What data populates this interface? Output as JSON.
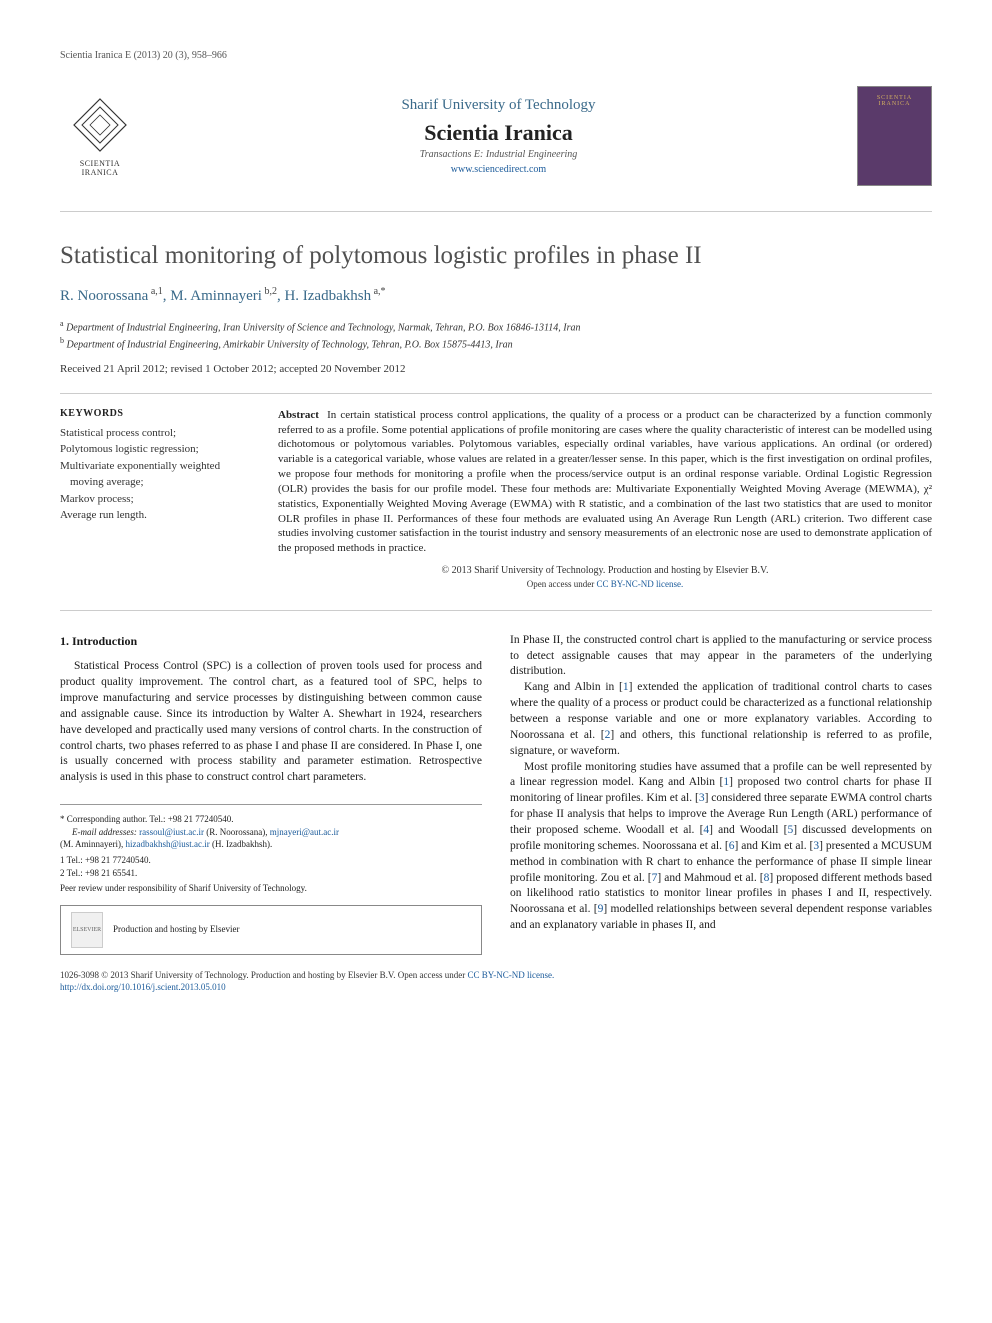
{
  "header_bar": "Scientia Iranica E (2013) 20 (3), 958–966",
  "logo_left_label": "SCIENTIA\nIRANICA",
  "journal": {
    "university": "Sharif University of Technology",
    "name": "Scientia Iranica",
    "transactions": "Transactions E: Industrial Engineering",
    "url": "www.sciencedirect.com"
  },
  "cover_label": "SCIENTIA IRANICA",
  "title": "Statistical monitoring of polytomous logistic profiles in phase II",
  "authors_html": "R. Noorossana<sup> a,1</sup>, M. Aminnayeri<sup> b,2</sup>, H. Izadbakhsh<sup> a,*</sup>",
  "affiliations": [
    {
      "sup": "a",
      "text": "Department of Industrial Engineering, Iran University of Science and Technology, Narmak, Tehran, P.O. Box 16846-13114, Iran"
    },
    {
      "sup": "b",
      "text": "Department of Industrial Engineering, Amirkabir University of Technology, Tehran, P.O. Box 15875-4413, Iran"
    }
  ],
  "dates": "Received 21 April 2012; revised 1 October 2012; accepted 20 November 2012",
  "keywords_heading": "KEYWORDS",
  "keywords": [
    "Statistical process control;",
    "Polytomous logistic regression;",
    "Multivariate exponentially weighted moving average;",
    "Markov process;",
    "Average run length."
  ],
  "abstract_label": "Abstract",
  "abstract_body": "In certain statistical process control applications, the quality of a process or a product can be characterized by a function commonly referred to as a profile. Some potential applications of profile monitoring are cases where the quality characteristic of interest can be modelled using dichotomous or polytomous variables. Polytomous variables, especially ordinal variables, have various applications. An ordinal (or ordered) variable is a categorical variable, whose values are related in a greater/lesser sense. In this paper, which is the first investigation on ordinal profiles, we propose four methods for monitoring a profile when the process/service output is an ordinal response variable. Ordinal Logistic Regression (OLR) provides the basis for our profile model. These four methods are: Multivariate Exponentially Weighted Moving Average (MEWMA), χ² statistics, Exponentially Weighted Moving Average (EWMA) with R statistic, and a combination of the last two statistics that are used to monitor OLR profiles in phase II. Performances of these four methods are evaluated using An Average Run Length (ARL) criterion. Two different case studies involving customer satisfaction in the tourist industry and sensory measurements of an electronic nose are used to demonstrate application of the proposed methods in practice.",
  "copyright": "© 2013 Sharif University of Technology. Production and hosting by Elsevier B.V.",
  "license_prefix": "Open access under ",
  "license_link": "CC BY-NC-ND license.",
  "section1_heading": "1. Introduction",
  "col_left_p1": "Statistical Process Control (SPC) is a collection of proven tools used for process and product quality improvement. The control chart, as a featured tool of SPC, helps to improve manufacturing and service processes by distinguishing between common cause and assignable cause. Since its introduction by Walter A. Shewhart in 1924, researchers have developed and practically used many versions of control charts. In the construction of control charts, two phases referred to as phase I and phase II are considered. In Phase I, one is usually concerned with process stability and parameter estimation. Retrospective analysis is used in this phase to construct control chart parameters.",
  "col_right_p1": "In Phase II, the constructed control chart is applied to the manufacturing or service process to detect assignable causes that may appear in the parameters of the underlying distribution.",
  "col_right_p2_a": "Kang and Albin in [",
  "col_right_p2_b": "] extended the application of traditional control charts to cases where the quality of a process or product could be characterized as a functional relationship between a response variable and one or more explanatory variables. According to Noorossana et al. [",
  "col_right_p2_c": "] and others, this functional relationship is referred to as profile, signature, or waveform.",
  "col_right_p3_a": "Most profile monitoring studies have assumed that a profile can be well represented by a linear regression model. Kang and Albin [",
  "col_right_p3_b": "] proposed two control charts for phase II monitoring of linear profiles. Kim et al. [",
  "col_right_p3_c": "] considered three separate EWMA control charts for phase II analysis that helps to improve the Average Run Length (ARL) performance of their proposed scheme. Woodall et al. [",
  "col_right_p3_d": "] and Woodall [",
  "col_right_p3_e": "] discussed developments on profile monitoring schemes. Noorossana et al. [",
  "col_right_p3_f": "] and Kim et al. [",
  "col_right_p3_g": "] presented a MCUSUM method in combination with R chart to enhance the performance of phase II simple linear profile monitoring. Zou et al. [",
  "col_right_p3_h": "] and Mahmoud et al. [",
  "col_right_p3_i": "] proposed different methods based on likelihood ratio statistics to monitor linear profiles in phases I and II, respectively. Noorossana et al. [",
  "col_right_p3_j": "] modelled relationships between several dependent response variables and an explanatory variable in phases II, and",
  "refs": {
    "r1": "1",
    "r2": "2",
    "r3": "3",
    "r4": "4",
    "r5": "5",
    "r6": "6",
    "r7": "7",
    "r8": "8",
    "r9": "9"
  },
  "footnotes": {
    "corr_label": "* Corresponding author. Tel.: +98 21 77240540.",
    "email_label": "E-mail addresses:",
    "email1": "rassoul@iust.ac.ir",
    "name1": "(R. Noorossana),",
    "email2": "mjnayeri@aut.ac.ir",
    "name2": "(M. Aminnayeri),",
    "email3": "hizadbakhsh@iust.ac.ir",
    "name3": "(H. Izadbakhsh).",
    "tel1": "1  Tel.: +98 21 77240540.",
    "tel2": "2  Tel.: +98 21 65541.",
    "peer": "Peer review under responsibility of Sharif University of Technology."
  },
  "elsevier_text": "Production and hosting by Elsevier",
  "bottom": {
    "line1_a": "1026-3098 © 2013 Sharif University of Technology. Production and hosting by Elsevier B.V. ",
    "line1_b": "Open access under ",
    "line1_link": "CC BY-NC-ND license.",
    "doi": "http://dx.doi.org/10.1016/j.scient.2013.05.010"
  },
  "colors": {
    "link": "#1a5a9a",
    "heading": "#3a6a8a",
    "cover_bg": "#5a3a6a",
    "cover_text": "#d4b060"
  }
}
